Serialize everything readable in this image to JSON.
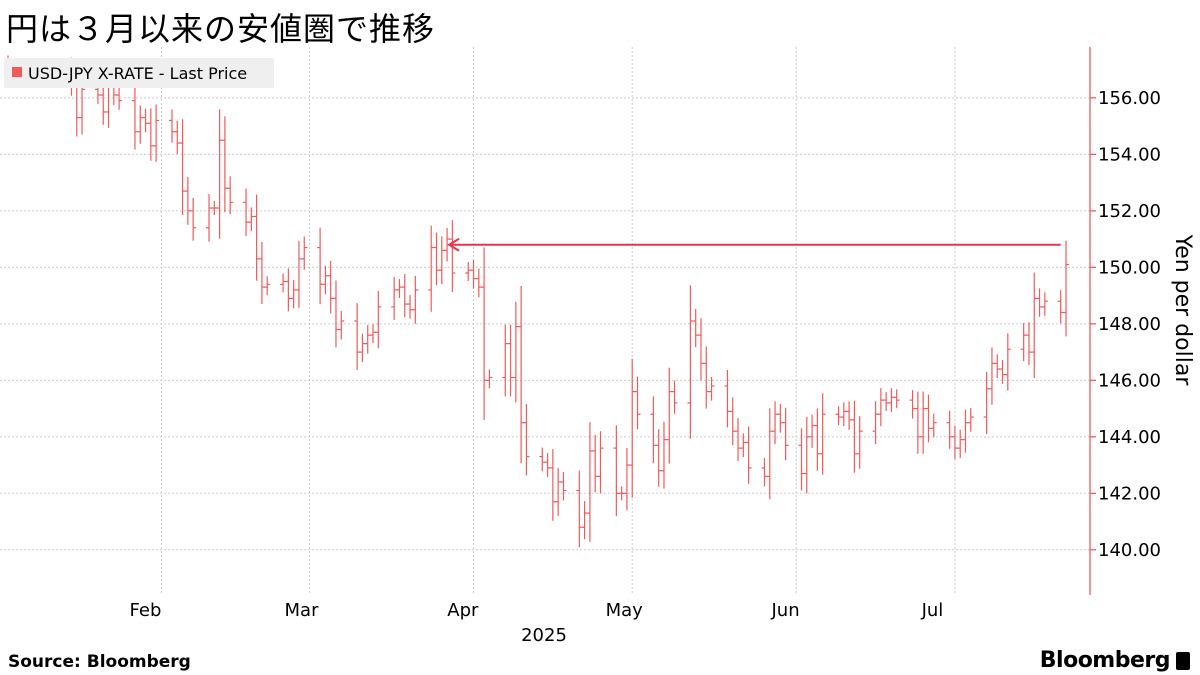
{
  "header": {
    "title": "円は３月以来の安値圏で推移"
  },
  "footer": {
    "source": "Source:  Bloomberg",
    "brand": "Bloomberg"
  },
  "colors": {
    "series": "#f05a5a",
    "arrow": "#e8334a",
    "grid": "#cccccc",
    "legend_bg": "#efefef"
  },
  "chart_data": {
    "type": "line",
    "style": "ohlc-bars",
    "title": "円は３月以来の安値圏で推移",
    "ylabel": "Yen per dollar",
    "xlabel": "2025",
    "ylim": [
      138.4,
      157.8
    ],
    "y_ticks": [
      "140.00",
      "142.00",
      "144.00",
      "146.00",
      "148.00",
      "150.00",
      "152.00",
      "154.00",
      "156.00"
    ],
    "y_tick_values": [
      140,
      142,
      144,
      146,
      148,
      150,
      152,
      154,
      156
    ],
    "x_ticks": [
      "Feb",
      "Mar",
      "Apr",
      "May",
      "Jun",
      "Jul"
    ],
    "x_tick_dates": [
      "2025-02-01",
      "2025-03-01",
      "2025-04-01",
      "2025-05-01",
      "2025-06-01",
      "2025-07-01"
    ],
    "x_range": [
      "2025-01-03",
      "2025-07-22"
    ],
    "legend": {
      "entries": [
        "USD-JPY X-RATE - Last Price"
      ],
      "position": "top-left"
    },
    "grid": true,
    "annotation": {
      "type": "arrow",
      "value": 150.8,
      "from_date": "2025-07-21",
      "to_date": "2025-03-27"
    },
    "series": [
      {
        "name": "USD-JPY X-RATE - Last Price",
        "dates": [
          "2025-01-03",
          "2025-01-06",
          "2025-01-07",
          "2025-01-08",
          "2025-01-09",
          "2025-01-10",
          "2025-01-13",
          "2025-01-14",
          "2025-01-15",
          "2025-01-16",
          "2025-01-17",
          "2025-01-20",
          "2025-01-21",
          "2025-01-22",
          "2025-01-23",
          "2025-01-24",
          "2025-01-27",
          "2025-01-28",
          "2025-01-29",
          "2025-01-30",
          "2025-01-31",
          "2025-02-03",
          "2025-02-04",
          "2025-02-05",
          "2025-02-06",
          "2025-02-07",
          "2025-02-10",
          "2025-02-11",
          "2025-02-12",
          "2025-02-13",
          "2025-02-14",
          "2025-02-17",
          "2025-02-18",
          "2025-02-19",
          "2025-02-20",
          "2025-02-21",
          "2025-02-24",
          "2025-02-25",
          "2025-02-26",
          "2025-02-27",
          "2025-02-28",
          "2025-03-03",
          "2025-03-04",
          "2025-03-05",
          "2025-03-06",
          "2025-03-07",
          "2025-03-10",
          "2025-03-11",
          "2025-03-12",
          "2025-03-13",
          "2025-03-14",
          "2025-03-17",
          "2025-03-18",
          "2025-03-19",
          "2025-03-20",
          "2025-03-21",
          "2025-03-24",
          "2025-03-25",
          "2025-03-26",
          "2025-03-27",
          "2025-03-28",
          "2025-03-31",
          "2025-04-01",
          "2025-04-02",
          "2025-04-03",
          "2025-04-04",
          "2025-04-07",
          "2025-04-08",
          "2025-04-09",
          "2025-04-10",
          "2025-04-11",
          "2025-04-14",
          "2025-04-15",
          "2025-04-16",
          "2025-04-17",
          "2025-04-18",
          "2025-04-21",
          "2025-04-22",
          "2025-04-23",
          "2025-04-24",
          "2025-04-25",
          "2025-04-28",
          "2025-04-29",
          "2025-04-30",
          "2025-05-01",
          "2025-05-02",
          "2025-05-05",
          "2025-05-06",
          "2025-05-07",
          "2025-05-08",
          "2025-05-09",
          "2025-05-12",
          "2025-05-13",
          "2025-05-14",
          "2025-05-15",
          "2025-05-16",
          "2025-05-19",
          "2025-05-20",
          "2025-05-21",
          "2025-05-22",
          "2025-05-23",
          "2025-05-26",
          "2025-05-27",
          "2025-05-28",
          "2025-05-29",
          "2025-05-30",
          "2025-06-02",
          "2025-06-03",
          "2025-06-04",
          "2025-06-05",
          "2025-06-06",
          "2025-06-09",
          "2025-06-10",
          "2025-06-11",
          "2025-06-12",
          "2025-06-13",
          "2025-06-16",
          "2025-06-17",
          "2025-06-18",
          "2025-06-19",
          "2025-06-20",
          "2025-06-23",
          "2025-06-24",
          "2025-06-25",
          "2025-06-26",
          "2025-06-27",
          "2025-06-30",
          "2025-07-01",
          "2025-07-02",
          "2025-07-03",
          "2025-07-04",
          "2025-07-07",
          "2025-07-08",
          "2025-07-09",
          "2025-07-10",
          "2025-07-11",
          "2025-07-14",
          "2025-07-15",
          "2025-07-16",
          "2025-07-17",
          "2025-07-18",
          "2025-07-21",
          "2025-07-22"
        ],
        "close": [
          157.2,
          157.6,
          158.1,
          158.4,
          158.1,
          157.7,
          157.5,
          157.9,
          156.5,
          155.3,
          156.3,
          156.1,
          155.5,
          156.4,
          156.1,
          155.9,
          154.8,
          155.3,
          155.1,
          154.3,
          155.2,
          154.8,
          154.4,
          152.7,
          152.0,
          151.4,
          152.1,
          152.1,
          154.5,
          152.8,
          152.3,
          151.6,
          151.8,
          150.3,
          149.3,
          149.4,
          149.5,
          148.9,
          149.2,
          150.3,
          150.7,
          149.4,
          149.7,
          148.9,
          147.8,
          148.1,
          147.0,
          147.3,
          147.6,
          147.7,
          148.6,
          149.2,
          149.3,
          148.7,
          148.5,
          149.2,
          150.7,
          149.9,
          150.6,
          151.0,
          149.8,
          149.9,
          149.6,
          149.3,
          146.0,
          146.1,
          147.3,
          146.1,
          147.9,
          144.5,
          143.3,
          143.1,
          142.9,
          141.7,
          142.4,
          142.1,
          140.8,
          141.3,
          143.5,
          142.6,
          143.6,
          142.0,
          142.0,
          143.0,
          145.6,
          144.8,
          143.7,
          142.8,
          143.9,
          145.6,
          145.2,
          148.1,
          147.6,
          146.6,
          145.6,
          145.8,
          144.9,
          144.2,
          143.6,
          143.8,
          142.9,
          142.6,
          144.2,
          144.8,
          144.5,
          143.7,
          142.7,
          144.0,
          144.4,
          143.4,
          144.8,
          144.7,
          144.9,
          144.6,
          143.4,
          144.2,
          144.8,
          145.3,
          145.2,
          145.4,
          145.3,
          145.0,
          144.0,
          145.0,
          144.3,
          144.5,
          144.0,
          143.6,
          143.9,
          144.5,
          144.7,
          145.7,
          146.6,
          146.4,
          146.2,
          147.1,
          147.6,
          147.0,
          148.9,
          148.6,
          148.8,
          148.4,
          150.1
        ]
      }
    ]
  }
}
